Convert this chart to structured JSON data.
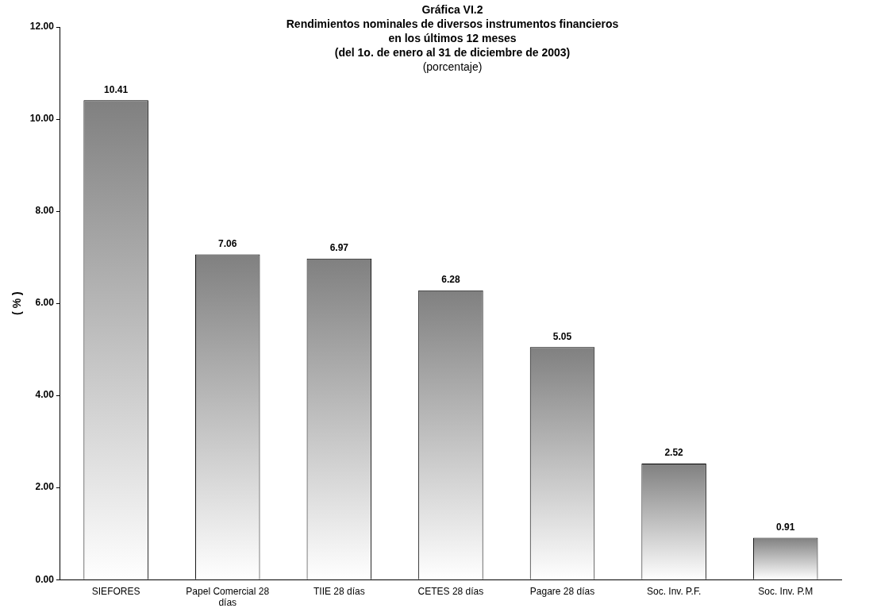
{
  "chart_data": {
    "type": "bar",
    "title": "Gráfica VI.2\nRendimientos nominales de diversos instrumentos financieros\nen los últimos 12 meses\n(del 1o. de enero al 31 de diciembre de 2003)",
    "subtitle": "(porcentaje)",
    "ylabel": "( % )",
    "categories": [
      "SIEFORES",
      "Papel Comercial 28 días",
      "TIIE 28 días",
      "CETES 28 días",
      "Pagare 28 días",
      "Soc. Inv. P.F.",
      "Soc. Inv. P.M"
    ],
    "values": [
      10.41,
      7.06,
      6.97,
      6.28,
      5.05,
      2.52,
      0.91
    ],
    "color": "#808080",
    "ylim": [
      0,
      12
    ],
    "yticks": [
      {
        "value": 0,
        "label": "0.00"
      },
      {
        "value": 2,
        "label": "2.00"
      },
      {
        "value": 4,
        "label": "4.00"
      },
      {
        "value": 6,
        "label": "6.00"
      },
      {
        "value": 8,
        "label": "8.00"
      },
      {
        "value": 10,
        "label": "10.00"
      },
      {
        "value": 12,
        "label": "12.00"
      }
    ],
    "grid": false,
    "legend": false,
    "data_labels": true
  }
}
